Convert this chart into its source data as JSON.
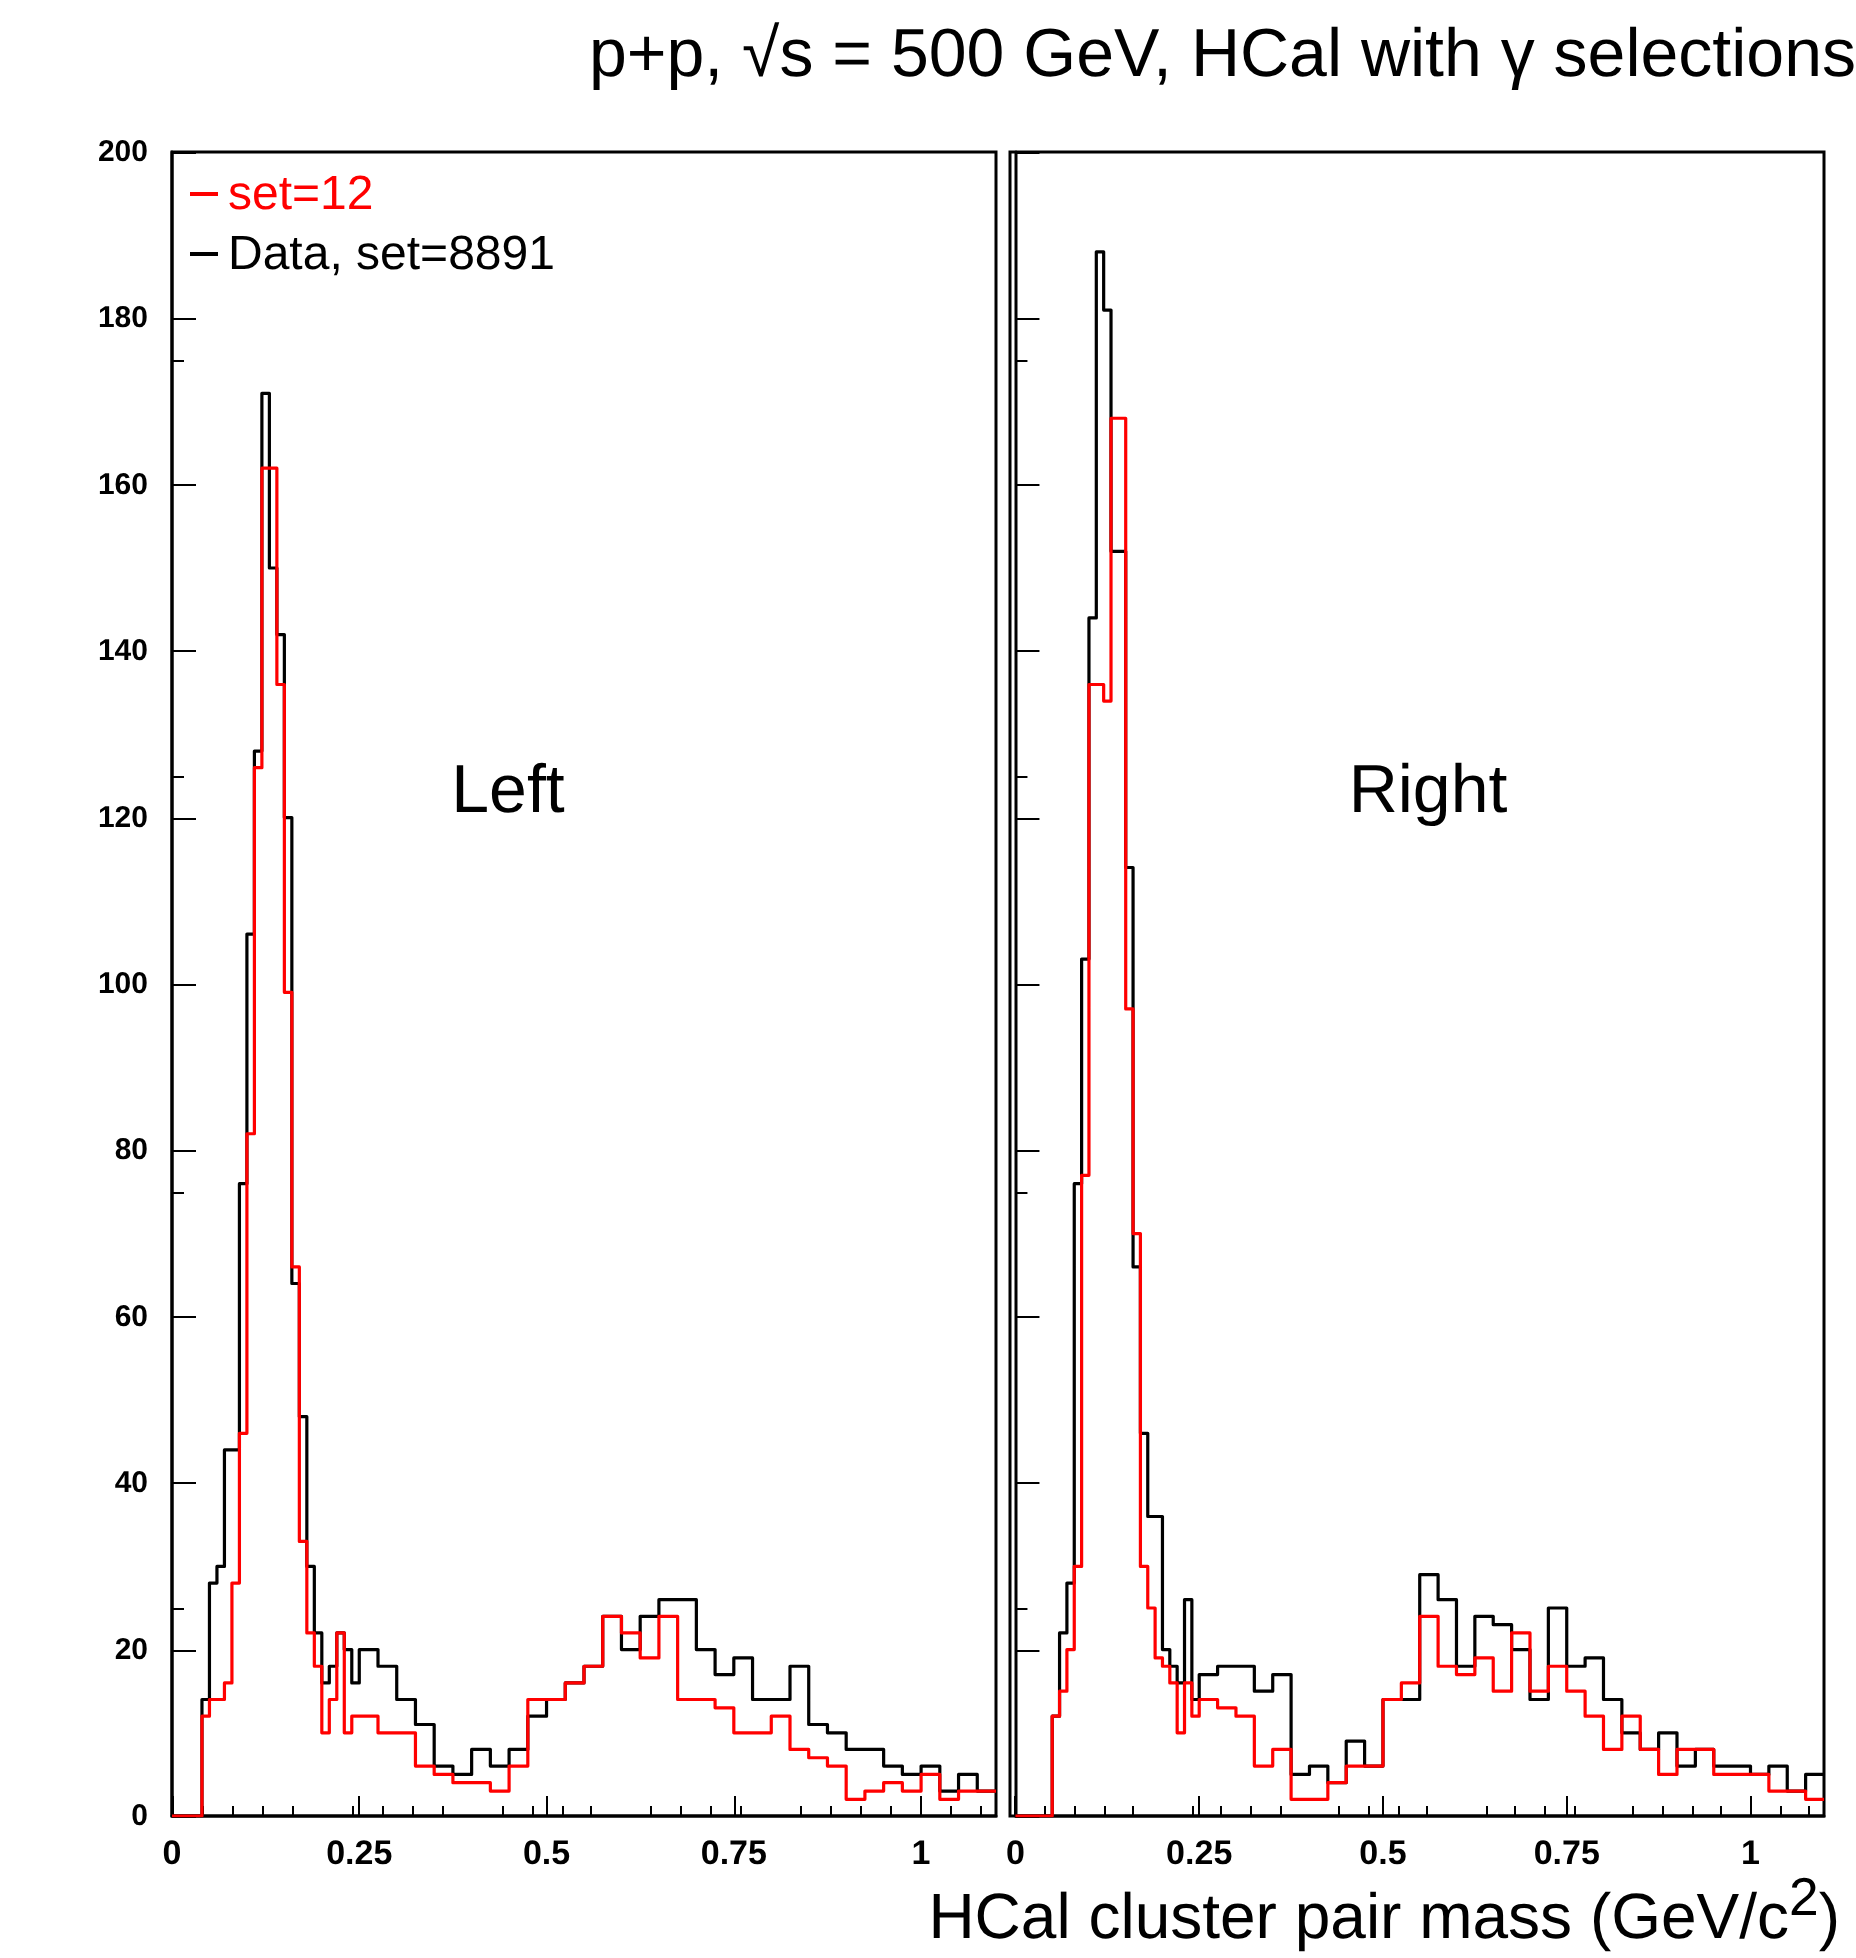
{
  "chart_data": [
    {
      "type": "histogram",
      "title": "p+p, √s = 500 GeV, HCal with γ selections",
      "annotations": [
        "Left"
      ],
      "bins": [
        0,
        0.01,
        0.02,
        0.03,
        0.04,
        0.05,
        0.06,
        0.07,
        0.08,
        0.09,
        0.1,
        0.11,
        0.12,
        0.13,
        0.14,
        0.15,
        0.16,
        0.17,
        0.18,
        0.19,
        0.2,
        0.21,
        0.22,
        0.23,
        0.24,
        0.25,
        0.275,
        0.3,
        0.325,
        0.35,
        0.375,
        0.4,
        0.425,
        0.45,
        0.475,
        0.5,
        0.525,
        0.55,
        0.575,
        0.6,
        0.625,
        0.65,
        0.675,
        0.7,
        0.725,
        0.75,
        0.775,
        0.8,
        0.825,
        0.85,
        0.875,
        0.9,
        0.925,
        0.95,
        0.975,
        1,
        1.025,
        1.05,
        1.075,
        1.1
      ],
      "series": [
        {
          "name": "set=12",
          "color": "#ff0000",
          "values": [
            0,
            0,
            0,
            0,
            12,
            14,
            14,
            16,
            28,
            46,
            82,
            126,
            162,
            162,
            136,
            99,
            66,
            33,
            22,
            18,
            10,
            14,
            22,
            10,
            12,
            12,
            10,
            10,
            6,
            5,
            4,
            4,
            3,
            6,
            14,
            14,
            16,
            18,
            24,
            22,
            19,
            24,
            14,
            14,
            13,
            10,
            10,
            12,
            8,
            7,
            6,
            2,
            3,
            4,
            3,
            5,
            2,
            3,
            3
          ]
        },
        {
          "name": "Data, set=8891",
          "color": "#000000",
          "values": [
            0,
            0,
            0,
            0,
            14,
            28,
            30,
            44,
            44,
            76,
            106,
            128,
            171,
            150,
            142,
            120,
            64,
            48,
            30,
            22,
            16,
            18,
            22,
            20,
            16,
            20,
            18,
            14,
            11,
            6,
            5,
            8,
            6,
            8,
            12,
            14,
            16,
            18,
            24,
            20,
            24,
            26,
            26,
            20,
            17,
            19,
            14,
            14,
            18,
            11,
            10,
            8,
            8,
            6,
            5,
            6,
            3,
            5,
            3
          ]
        }
      ],
      "xlim": [
        0,
        1.1
      ],
      "xticks": [
        0,
        0.25,
        0.5,
        0.75,
        1
      ],
      "ylim": [
        0,
        200
      ],
      "yticks": [
        0,
        20,
        40,
        60,
        80,
        100,
        120,
        140,
        160,
        180,
        200
      ],
      "grid": false,
      "legend": "top left",
      "marker": "none",
      "line_style": "solid"
    },
    {
      "type": "histogram",
      "xlabel": "HCal cluster pair mass (GeV/c$^{2}$)",
      "annotations": [
        "Right"
      ],
      "bins": [
        0,
        0.01,
        0.02,
        0.03,
        0.04,
        0.05,
        0.06,
        0.07,
        0.08,
        0.09,
        0.1,
        0.11,
        0.12,
        0.13,
        0.14,
        0.15,
        0.16,
        0.17,
        0.18,
        0.19,
        0.2,
        0.21,
        0.22,
        0.23,
        0.24,
        0.25,
        0.275,
        0.3,
        0.325,
        0.35,
        0.375,
        0.4,
        0.425,
        0.45,
        0.475,
        0.5,
        0.525,
        0.55,
        0.575,
        0.6,
        0.625,
        0.65,
        0.675,
        0.7,
        0.725,
        0.75,
        0.775,
        0.8,
        0.825,
        0.85,
        0.875,
        0.9,
        0.925,
        0.95,
        0.975,
        1,
        1.025,
        1.05,
        1.075,
        1.1
      ],
      "series": [
        {
          "color": "#ff0000",
          "values": [
            0,
            0,
            0,
            0,
            0,
            12,
            15,
            20,
            30,
            77,
            136,
            136,
            134,
            168,
            168,
            97,
            70,
            30,
            25,
            19,
            18,
            16,
            10,
            16,
            12,
            14,
            13,
            12,
            6,
            8,
            2,
            2,
            4,
            6,
            6,
            14,
            16,
            24,
            18,
            17,
            19,
            15,
            22,
            15,
            18,
            15,
            12,
            8,
            12,
            8,
            5,
            8,
            8,
            5,
            5,
            5,
            3,
            3,
            2
          ]
        },
        {
          "color": "#000000",
          "values": [
            0,
            0,
            0,
            0,
            0,
            12,
            22,
            28,
            76,
            103,
            144,
            188,
            181,
            152,
            152,
            114,
            66,
            46,
            36,
            36,
            20,
            18,
            16,
            26,
            14,
            17,
            18,
            18,
            15,
            17,
            5,
            6,
            4,
            9,
            6,
            14,
            14,
            29,
            26,
            18,
            24,
            23,
            20,
            14,
            25,
            18,
            19,
            14,
            10,
            8,
            10,
            6,
            8,
            6,
            6,
            5,
            6,
            3,
            5
          ]
        }
      ],
      "xlim": [
        0,
        1.1
      ],
      "xticks": [
        0,
        0.25,
        0.5,
        0.75,
        1
      ],
      "ylim": [
        0,
        200
      ],
      "yticks": [
        0,
        20,
        40,
        60,
        80,
        100,
        120,
        140,
        160,
        180,
        200
      ],
      "tick_labels": "x",
      "grid": false,
      "legend": false,
      "marker": "none",
      "line_style": "solid"
    }
  ]
}
